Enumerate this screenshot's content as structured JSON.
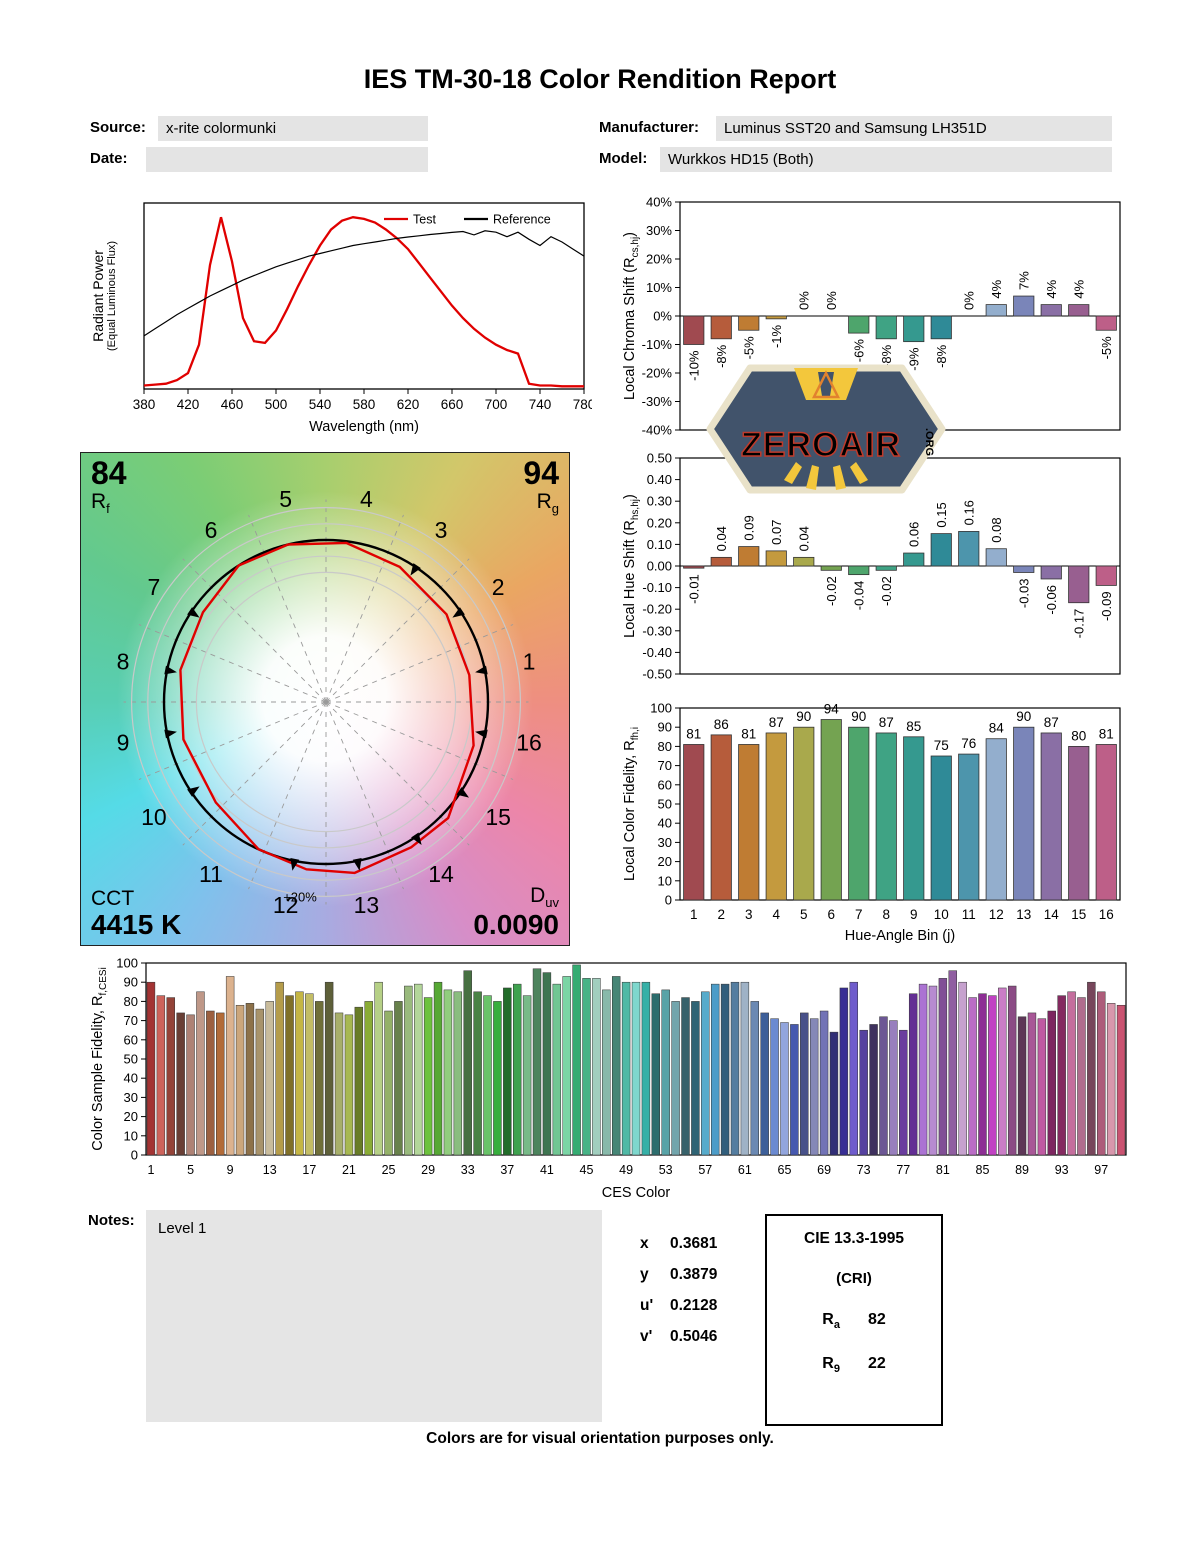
{
  "page": {
    "title": "IES TM-30-18 Color Rendition Report",
    "footer": "Colors are for visual orientation purposes only."
  },
  "header": {
    "source_label": "Source:",
    "source_value": "x-rite colormunki",
    "date_label": "Date:",
    "date_value": "",
    "manufacturer_label": "Manufacturer:",
    "manufacturer_value": "Luminus SST20 and Samsung LH351D",
    "model_label": "Model:",
    "model_value": "Wurkkos HD15 (Both)"
  },
  "watermark": {
    "name": "ZEROAIR",
    "org": ".ORG"
  },
  "icon": {
    "rf_value": "84",
    "rf_base": "R",
    "rf_sub": "f",
    "rg_value": "94",
    "rg_base": "R",
    "rg_sub": "g",
    "cct_label": "CCT",
    "cct_value": "4415 K",
    "duv_base": "D",
    "duv_sub": "uv",
    "duv_value": "0.0090",
    "ring_label": "+20%",
    "bin_numbers": [
      "1",
      "2",
      "3",
      "4",
      "5",
      "6",
      "7",
      "8",
      "9",
      "10",
      "11",
      "12",
      "13",
      "14",
      "15",
      "16"
    ]
  },
  "notes": {
    "label": "Notes:",
    "value": "Level 1"
  },
  "chromaticity": {
    "rows": [
      {
        "label": "x",
        "value": "0.3681"
      },
      {
        "label": "y",
        "value": "0.3879"
      },
      {
        "label": "u'",
        "value": "0.2128"
      },
      {
        "label": "v'",
        "value": "0.5046"
      }
    ]
  },
  "cri_box": {
    "title": "CIE 13.3-1995",
    "subtitle": "(CRI)",
    "ra_base": "R",
    "ra_sub": "a",
    "ra_value": "82",
    "r9_base": "R",
    "r9_sub": "9",
    "r9_value": "22"
  },
  "hue_bin_colors": [
    "#a04a50",
    "#b65c3b",
    "#bf7c33",
    "#c49a3e",
    "#a9a94c",
    "#74a351",
    "#4ea56c",
    "#3fa384",
    "#35998f",
    "#2f8a97",
    "#4d95ac",
    "#93aecd",
    "#7a85b9",
    "#8a6fa5",
    "#985f90",
    "#bd5f88"
  ],
  "chart_data": [
    {
      "id": "spd",
      "type": "line",
      "xlabel": "Wavelength (nm)",
      "ylabel_line1": "Radiant Power",
      "ylabel_line2": "(Equal Luminous Flux)",
      "xlim": [
        380,
        780
      ],
      "ylim": [
        0,
        1.05
      ],
      "xticks": [
        380,
        420,
        460,
        500,
        540,
        580,
        620,
        660,
        700,
        740,
        780
      ],
      "legend": [
        "Test",
        "Reference"
      ],
      "legend_position": "top-right",
      "series": [
        {
          "name": "Test",
          "color": "#e00000",
          "width": 2.3,
          "x": [
            380,
            390,
            400,
            410,
            420,
            430,
            440,
            450,
            460,
            470,
            480,
            490,
            500,
            510,
            520,
            530,
            540,
            550,
            560,
            570,
            580,
            590,
            600,
            610,
            620,
            630,
            640,
            650,
            660,
            670,
            680,
            690,
            700,
            710,
            720,
            730,
            740,
            750,
            760,
            770,
            780
          ],
          "y": [
            0.02,
            0.025,
            0.03,
            0.05,
            0.09,
            0.25,
            0.7,
            0.97,
            0.72,
            0.4,
            0.27,
            0.26,
            0.33,
            0.45,
            0.58,
            0.7,
            0.81,
            0.9,
            0.95,
            0.97,
            0.96,
            0.94,
            0.9,
            0.85,
            0.79,
            0.71,
            0.63,
            0.55,
            0.47,
            0.4,
            0.34,
            0.29,
            0.25,
            0.22,
            0.2,
            0.03,
            0.02,
            0.02,
            0.015,
            0.015,
            0.015
          ]
        },
        {
          "name": "Reference",
          "color": "#000000",
          "width": 1.2,
          "x": [
            380,
            390,
            400,
            410,
            420,
            430,
            440,
            450,
            460,
            470,
            480,
            490,
            500,
            510,
            520,
            530,
            540,
            550,
            560,
            570,
            580,
            590,
            600,
            610,
            620,
            630,
            640,
            650,
            660,
            670,
            680,
            690,
            700,
            710,
            720,
            730,
            740,
            750,
            760,
            770,
            780
          ],
          "y": [
            0.3,
            0.34,
            0.38,
            0.42,
            0.455,
            0.49,
            0.525,
            0.555,
            0.585,
            0.615,
            0.64,
            0.665,
            0.69,
            0.71,
            0.73,
            0.75,
            0.765,
            0.78,
            0.795,
            0.81,
            0.82,
            0.83,
            0.84,
            0.85,
            0.858,
            0.865,
            0.872,
            0.878,
            0.884,
            0.889,
            0.87,
            0.893,
            0.885,
            0.86,
            0.885,
            0.845,
            0.81,
            0.86,
            0.83,
            0.79,
            0.75
          ]
        }
      ]
    },
    {
      "id": "chroma_shift",
      "type": "bar",
      "ylabel_pre": "Local Chroma Shift (R",
      "ylabel_sub": "cs,hj",
      "ylabel_post": ")",
      "ylim": [
        -40,
        40
      ],
      "ytick_step": 10,
      "categories": [
        1,
        2,
        3,
        4,
        5,
        6,
        7,
        8,
        9,
        10,
        11,
        12,
        13,
        14,
        15,
        16
      ],
      "values": [
        -10,
        -8,
        -5,
        -1,
        0,
        0,
        -6,
        -8,
        -9,
        -8,
        0,
        4,
        7,
        4,
        4,
        -5
      ],
      "bar_labels": [
        "-10%",
        "-8%",
        "-5%",
        "-1%",
        "0%",
        "0%",
        "-6%",
        "-8%",
        "-9%",
        "-8%",
        "0%",
        "4%",
        "7%",
        "4%",
        "4%",
        "-5%"
      ]
    },
    {
      "id": "hue_shift",
      "type": "bar",
      "ylabel_pre": "Local Hue Shift (R",
      "ylabel_sub": "hs,hj",
      "ylabel_post": ")",
      "ylim": [
        -0.5,
        0.5
      ],
      "ytick_step": 0.1,
      "categories": [
        1,
        2,
        3,
        4,
        5,
        6,
        7,
        8,
        9,
        10,
        11,
        12,
        13,
        14,
        15,
        16
      ],
      "values": [
        -0.01,
        0.04,
        0.09,
        0.07,
        0.04,
        -0.02,
        -0.04,
        -0.02,
        0.06,
        0.15,
        0.16,
        0.08,
        -0.03,
        -0.06,
        -0.17,
        -0.09
      ],
      "bar_labels": [
        "-0.01",
        "0.04",
        "0.09",
        "0.07",
        "0.04",
        "-0.02",
        "-0.04",
        "-0.02",
        "0.06",
        "0.15",
        "0.16",
        "0.08",
        "-0.03",
        "-0.06",
        "-0.17",
        "-0.09"
      ]
    },
    {
      "id": "fidelity",
      "type": "bar",
      "ylabel_pre": "Local Color Fidelity, R",
      "ylabel_sub": "fh,i",
      "ylabel_post": "",
      "xlabel": "Hue-Angle Bin (j)",
      "ylim": [
        0,
        100
      ],
      "ytick_step": 10,
      "categories": [
        1,
        2,
        3,
        4,
        5,
        6,
        7,
        8,
        9,
        10,
        11,
        12,
        13,
        14,
        15,
        16
      ],
      "values": [
        81,
        86,
        81,
        87,
        90,
        94,
        90,
        87,
        85,
        75,
        76,
        84,
        90,
        87,
        80,
        81
      ]
    },
    {
      "id": "ces",
      "type": "bar",
      "ylabel_pre": "Color Sample Fidelity, R",
      "ylabel_sub": "f,CESi",
      "ylabel_post": "",
      "xlabel": "CES Color",
      "ylim": [
        0,
        100
      ],
      "ytick_step": 10,
      "xtick_labels": [
        "1",
        "5",
        "9",
        "13",
        "17",
        "21",
        "25",
        "29",
        "33",
        "37",
        "41",
        "45",
        "49",
        "53",
        "57",
        "61",
        "65",
        "69",
        "73",
        "77",
        "81",
        "85",
        "89",
        "93",
        "97"
      ],
      "values": [
        90,
        83,
        82,
        74,
        73,
        85,
        75,
        74,
        93,
        78,
        79,
        76,
        80,
        90,
        83,
        85,
        84,
        80,
        90,
        74,
        73,
        77,
        80,
        90,
        75,
        80,
        88,
        89,
        82,
        90,
        86,
        85,
        96,
        85,
        83,
        80,
        87,
        89,
        83,
        97,
        95,
        89,
        93,
        99,
        92,
        92,
        86,
        93,
        90,
        90,
        90,
        84,
        86,
        80,
        82,
        80,
        85,
        89,
        89,
        90,
        90,
        80,
        74,
        71,
        69,
        68,
        74,
        71,
        75,
        64,
        87,
        90,
        65,
        68,
        72,
        70,
        65,
        84,
        89,
        88,
        92,
        96,
        90,
        82,
        84,
        83,
        87,
        88,
        72,
        74,
        71,
        75,
        83,
        85,
        82,
        90,
        85,
        79,
        78
      ]
    }
  ]
}
